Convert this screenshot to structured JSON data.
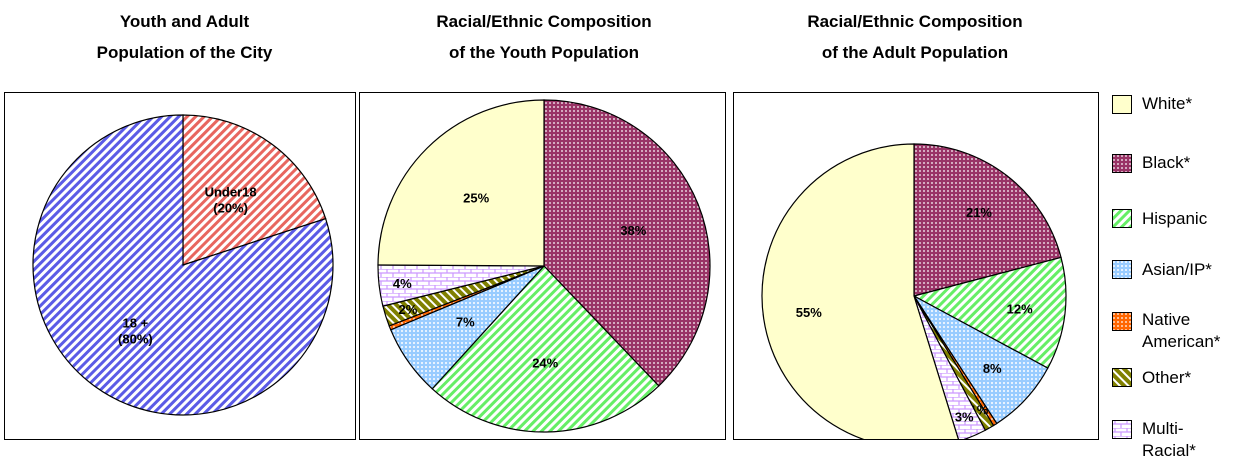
{
  "colors": {
    "youth_adult": {
      "Under18": "#e8665f",
      "18 +": "#5b5be6"
    },
    "white": "#ffffcc",
    "black": "#993366",
    "hispanic": "#66ee66",
    "asian": "#99ccff",
    "native": "#ff6600",
    "other": "#808000",
    "multiracial": "#cc99ff"
  },
  "legend": [
    {
      "key": "white",
      "lines": [
        "White*"
      ]
    },
    {
      "key": "black",
      "lines": [
        "Black*"
      ]
    },
    {
      "key": "hispanic",
      "lines": [
        "Hispanic"
      ]
    },
    {
      "key": "asian",
      "lines": [
        "Asian/IP*"
      ]
    },
    {
      "key": "native",
      "lines": [
        "Native",
        "American*"
      ]
    },
    {
      "key": "other",
      "lines": [
        "Other*"
      ]
    },
    {
      "key": "multiracial",
      "lines": [
        "Multi-",
        "Racial*"
      ]
    }
  ],
  "chart_data": [
    {
      "type": "pie",
      "title": [
        "Youth and Adult",
        "Population of the City"
      ],
      "slices": [
        {
          "name": "Under18",
          "value": 20,
          "label": [
            "Under18",
            "(20%)"
          ]
        },
        {
          "name": "18 +",
          "value": 80,
          "label": [
            "18 +",
            "(80%)"
          ]
        }
      ]
    },
    {
      "type": "pie",
      "title": [
        "Racial/Ethnic Composition",
        "of the Youth Population"
      ],
      "slices": [
        {
          "name": "Black*",
          "key": "black",
          "value": 38,
          "label": [
            "38%"
          ]
        },
        {
          "name": "Hispanic",
          "key": "hispanic",
          "value": 24,
          "label": [
            "24%"
          ]
        },
        {
          "name": "Asian/IP*",
          "key": "asian",
          "value": 7,
          "label": [
            "7%"
          ]
        },
        {
          "name": "Native American*",
          "key": "native",
          "value": 0.4,
          "label": []
        },
        {
          "name": "Other*",
          "key": "other",
          "value": 2,
          "label": [
            "2%"
          ]
        },
        {
          "name": "Multi-Racial*",
          "key": "multiracial",
          "value": 4,
          "label": [
            "4%"
          ]
        },
        {
          "name": "White*",
          "key": "white",
          "value": 25,
          "label": [
            "25%"
          ]
        }
      ]
    },
    {
      "type": "pie",
      "title": [
        "Racial/Ethnic Composition",
        "of the Adult Population"
      ],
      "slices": [
        {
          "name": "Black*",
          "key": "black",
          "value": 21,
          "label": [
            "21%"
          ]
        },
        {
          "name": "Hispanic",
          "key": "hispanic",
          "value": 12,
          "label": [
            "12%"
          ]
        },
        {
          "name": "Asian/IP*",
          "key": "asian",
          "value": 8,
          "label": [
            "8%"
          ]
        },
        {
          "name": "Native American*",
          "key": "native",
          "value": 0.4,
          "label": []
        },
        {
          "name": "Other*",
          "key": "other",
          "value": 1,
          "label": [
            "1%"
          ]
        },
        {
          "name": "Multi-Racial*",
          "key": "multiracial",
          "value": 3,
          "label": [
            "3%"
          ]
        },
        {
          "name": "White*",
          "key": "white",
          "value": 55,
          "label": [
            "55%"
          ]
        }
      ]
    }
  ]
}
